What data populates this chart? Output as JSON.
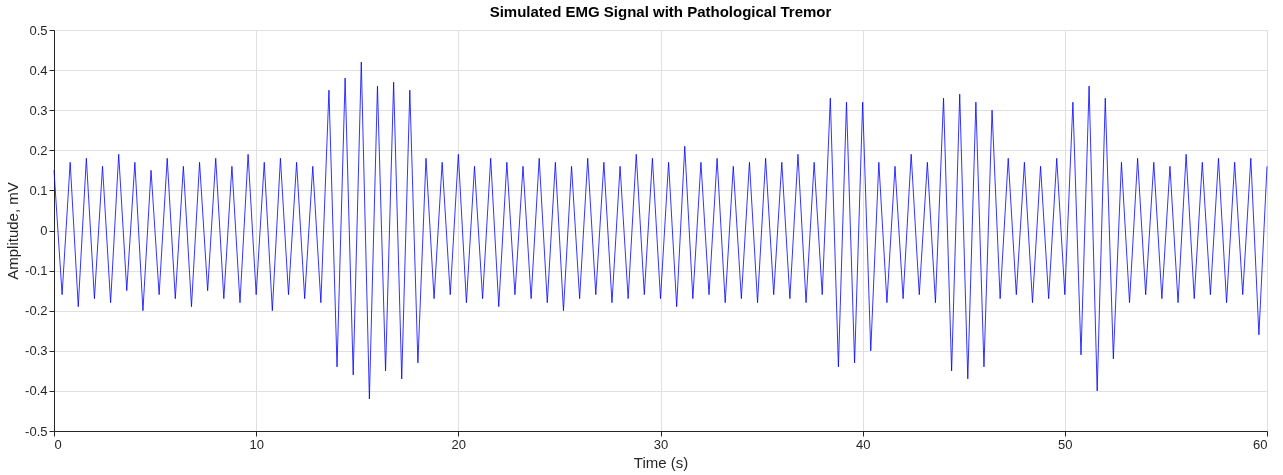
{
  "chart_data": {
    "type": "line",
    "title": "Simulated EMG Signal with Pathological Tremor",
    "xlabel": "Time (s)",
    "ylabel": "Amplitude, mV",
    "x": [
      0.0,
      0.4,
      0.8,
      1.2,
      1.6,
      2.0,
      2.4,
      2.8,
      3.2,
      3.6,
      4.0,
      4.4,
      4.8,
      5.2,
      5.6,
      6.0,
      6.4,
      6.8,
      7.2,
      7.6,
      8.0,
      8.4,
      8.8,
      9.2,
      9.6,
      10.0,
      10.4,
      10.8,
      11.2,
      11.6,
      12.0,
      12.4,
      12.8,
      13.2,
      13.6,
      14.0,
      14.4,
      14.8,
      15.2,
      15.6,
      16.0,
      16.4,
      16.8,
      17.2,
      17.6,
      18.0,
      18.4,
      18.8,
      19.2,
      19.6,
      20.0,
      20.4,
      20.8,
      21.2,
      21.6,
      22.0,
      22.4,
      22.8,
      23.2,
      23.6,
      24.0,
      24.4,
      24.8,
      25.2,
      25.6,
      26.0,
      26.4,
      26.8,
      27.2,
      27.6,
      28.0,
      28.4,
      28.8,
      29.2,
      29.6,
      30.0,
      30.4,
      30.8,
      31.2,
      31.6,
      32.0,
      32.4,
      32.8,
      33.2,
      33.6,
      34.0,
      34.4,
      34.8,
      35.2,
      35.6,
      36.0,
      36.4,
      36.8,
      37.2,
      37.6,
      38.0,
      38.4,
      38.8,
      39.2,
      39.6,
      40.0,
      40.4,
      40.8,
      41.2,
      41.6,
      42.0,
      42.4,
      42.8,
      43.2,
      43.6,
      44.0,
      44.4,
      44.8,
      45.2,
      45.6,
      46.0,
      46.4,
      46.8,
      47.2,
      47.6,
      48.0,
      48.4,
      48.8,
      49.2,
      49.6,
      50.0,
      50.4,
      50.8,
      51.2,
      51.6,
      52.0,
      52.4,
      52.8,
      53.2,
      53.6,
      54.0,
      54.4,
      54.8,
      55.2,
      55.6,
      56.0,
      56.4,
      56.8,
      57.2,
      57.6,
      58.0,
      58.4,
      58.8,
      59.2,
      59.6,
      60.0
    ],
    "series": [
      {
        "color": "#0000ff",
        "values": [
          0.15,
          -0.16,
          0.17,
          -0.19,
          0.18,
          -0.17,
          0.16,
          -0.18,
          0.19,
          -0.15,
          0.17,
          -0.2,
          0.15,
          -0.16,
          0.18,
          -0.17,
          0.16,
          -0.19,
          0.17,
          -0.15,
          0.18,
          -0.17,
          0.16,
          -0.18,
          0.19,
          -0.16,
          0.17,
          -0.2,
          0.18,
          -0.16,
          0.17,
          -0.17,
          0.16,
          -0.18,
          0.35,
          -0.34,
          0.38,
          -0.36,
          0.42,
          -0.42,
          0.36,
          -0.35,
          0.37,
          -0.37,
          0.35,
          -0.33,
          0.18,
          -0.17,
          0.17,
          -0.16,
          0.19,
          -0.18,
          0.16,
          -0.17,
          0.18,
          -0.19,
          0.17,
          -0.16,
          0.16,
          -0.17,
          0.18,
          -0.18,
          0.17,
          -0.2,
          0.16,
          -0.17,
          0.18,
          -0.16,
          0.17,
          -0.18,
          0.16,
          -0.17,
          0.19,
          -0.16,
          0.18,
          -0.17,
          0.17,
          -0.19,
          0.21,
          -0.17,
          0.17,
          -0.16,
          0.18,
          -0.18,
          0.16,
          -0.17,
          0.17,
          -0.18,
          0.18,
          -0.16,
          0.17,
          -0.17,
          0.19,
          -0.18,
          0.17,
          -0.16,
          0.33,
          -0.34,
          0.32,
          -0.33,
          0.32,
          -0.3,
          0.17,
          -0.18,
          0.16,
          -0.17,
          0.19,
          -0.16,
          0.17,
          -0.18,
          0.33,
          -0.35,
          0.34,
          -0.37,
          0.32,
          -0.34,
          0.3,
          -0.17,
          0.18,
          -0.16,
          0.17,
          -0.18,
          0.16,
          -0.17,
          0.18,
          -0.16,
          0.32,
          -0.31,
          0.36,
          -0.4,
          0.33,
          -0.32,
          0.17,
          -0.18,
          0.18,
          -0.16,
          0.17,
          -0.17,
          0.16,
          -0.18,
          0.19,
          -0.17,
          0.17,
          -0.16,
          0.18,
          -0.18,
          0.17,
          -0.16,
          0.18,
          -0.26,
          0.16
        ]
      }
    ],
    "xlim": [
      0,
      60
    ],
    "xticks": [
      0,
      10,
      20,
      30,
      40,
      50,
      60
    ],
    "ylim": [
      -0.5,
      0.5
    ],
    "yticks": [
      -0.5,
      -0.4,
      -0.3,
      -0.2,
      -0.1,
      0,
      0.1,
      0.2,
      0.3,
      0.4,
      0.5
    ],
    "grid": true,
    "line_style": "solid",
    "legend": false
  }
}
